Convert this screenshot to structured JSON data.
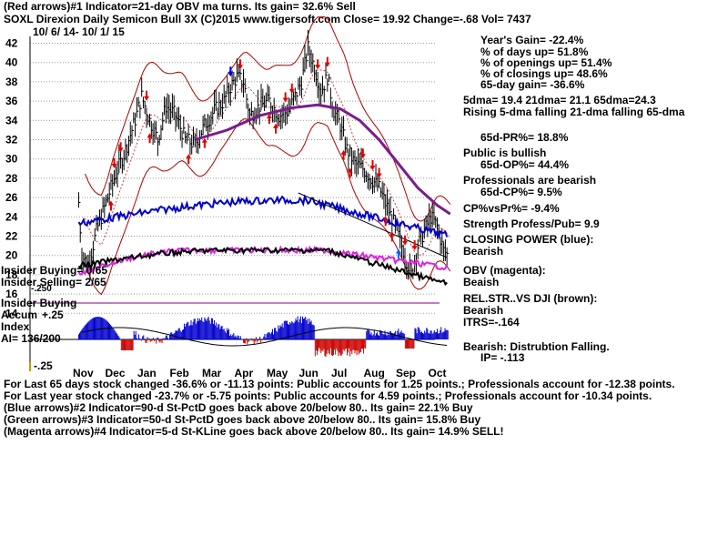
{
  "header": {
    "line1": "(Red arrows)#1 Indicator=21-day OBV ma turns. Its gain= 32.6% Sell",
    "line2": "SOXL   Direxion Daily Semicon Bull 3X  (C)2015 www.tigersoft.com      Close=  19.92  Change=-.68 Vol=  7437",
    "date_range": "10/ 6/ 14-  10/ 1/ 15"
  },
  "stats": [
    "Year's Gain= -22.4%",
    "% of days up= 51.8%",
    "% of openings up= 51.4%",
    "% of closings up= 48.6%",
    "65-day gain= -36.6%",
    "5dma= 19.4 21dma= 21.1 65dma=24.3",
    "Rising 5-dma falling 21-dma falling 65-dma",
    "65d-PR%= 18.8%",
    "Public is bullish",
    "65d-OP%= 44.4%",
    "Professionals are bearish",
    "65d-CP%= 9.5%",
    "CP%vsPr%= -9.4%",
    "Strength Profess/Pub= 9.9",
    "CLOSING POWER (blue):",
    "Bearish",
    "OBV (magenta):",
    "Beaish",
    "REL.STR..VS DJI (brown):",
    "Bearish",
    "ITRS=-.164",
    "Bearish: Distrubtion Falling.",
    "IP= -.113"
  ],
  "left_labels": {
    "insider_buying_65": "Insider Buying= 0/65",
    "insider_selling_65": "Insider Selling= 2/65",
    "insider_buying": "Insider Buying",
    "accum_label": "Accum",
    "accum_top": "+.25",
    "index_label": "Index",
    "ai": "AI= 136/200",
    "accum_bottom": "-.25",
    "small_val": "-.250"
  },
  "footer": [
    "For Last 65 days stock changed -36.6% or -11.13 points:  Public accounts for  1.25 points.;  Professionals account for -12.38 points.",
    "For Last year stock changed -23.7% or -5.75 points:  Public accounts for  4.59 points.;  Professionals account for -10.34 points.",
    "(Blue arrows)#2 Indicator=90-d St-PctD goes back above 20/below 80.. Its gain= 22.1% Buy",
    "(Green arrows)#3 Indicator=50-d St-PctD goes back above 20/below 80.. Its gain= 15.8% Buy",
    "(Magenta arrows)#4 Indicator=5-d St-KLine goes back above 20/below 80.. Its gain= 14.9% SELL!"
  ],
  "chart_data": {
    "type": "line",
    "ticker": "SOXL",
    "y_ticks": [
      42,
      40,
      38,
      36,
      34,
      32,
      30,
      28,
      26,
      24,
      22,
      20,
      18,
      16,
      14
    ],
    "ylim": [
      14,
      43
    ],
    "x_ticks": [
      "Nov",
      "Dec",
      "Jan",
      "Feb",
      "Mar",
      "Apr",
      "May",
      "Jun",
      "Jul",
      "Aug",
      "Sep",
      "Oct"
    ],
    "grid": true,
    "close_series": [
      {
        "m": -0.1,
        "v": 25.5
      },
      {
        "m": 0.0,
        "v": 20.0
      },
      {
        "m": 0.2,
        "v": 19.0
      },
      {
        "m": 0.45,
        "v": 22.5
      },
      {
        "m": 0.7,
        "v": 25.0
      },
      {
        "m": 1.0,
        "v": 28.0
      },
      {
        "m": 1.3,
        "v": 30.5
      },
      {
        "m": 1.6,
        "v": 33.5
      },
      {
        "m": 1.85,
        "v": 36.5
      },
      {
        "m": 2.1,
        "v": 34.0
      },
      {
        "m": 2.35,
        "v": 32.0
      },
      {
        "m": 2.6,
        "v": 35.5
      },
      {
        "m": 2.9,
        "v": 34.5
      },
      {
        "m": 3.2,
        "v": 32.0
      },
      {
        "m": 3.5,
        "v": 31.5
      },
      {
        "m": 3.8,
        "v": 33.5
      },
      {
        "m": 4.1,
        "v": 35.0
      },
      {
        "m": 4.4,
        "v": 36.0
      },
      {
        "m": 4.6,
        "v": 37.5
      },
      {
        "m": 4.8,
        "v": 38.5
      },
      {
        "m": 5.0,
        "v": 38.0
      },
      {
        "m": 5.2,
        "v": 34.5
      },
      {
        "m": 5.5,
        "v": 35.5
      },
      {
        "m": 5.8,
        "v": 36.0
      },
      {
        "m": 6.1,
        "v": 34.5
      },
      {
        "m": 6.4,
        "v": 35.0
      },
      {
        "m": 6.6,
        "v": 36.5
      },
      {
        "m": 6.8,
        "v": 38.0
      },
      {
        "m": 7.0,
        "v": 41.5
      },
      {
        "m": 7.2,
        "v": 39.5
      },
      {
        "m": 7.4,
        "v": 37.0
      },
      {
        "m": 7.6,
        "v": 38.5
      },
      {
        "m": 7.8,
        "v": 35.0
      },
      {
        "m": 8.0,
        "v": 33.5
      },
      {
        "m": 8.2,
        "v": 31.0
      },
      {
        "m": 8.45,
        "v": 29.5
      },
      {
        "m": 8.7,
        "v": 29.0
      },
      {
        "m": 8.95,
        "v": 28.0
      },
      {
        "m": 9.2,
        "v": 27.0
      },
      {
        "m": 9.45,
        "v": 25.0
      },
      {
        "m": 9.7,
        "v": 23.0
      },
      {
        "m": 9.95,
        "v": 20.5
      },
      {
        "m": 10.2,
        "v": 18.0
      },
      {
        "m": 10.4,
        "v": 21.0
      },
      {
        "m": 10.6,
        "v": 22.5
      },
      {
        "m": 10.8,
        "v": 24.0
      },
      {
        "m": 11.0,
        "v": 23.0
      },
      {
        "m": 11.2,
        "v": 20.5
      },
      {
        "m": 11.35,
        "v": 19.92
      }
    ],
    "ma65": [
      {
        "m": 3.5,
        "v": 32.0
      },
      {
        "m": 4.5,
        "v": 33.0
      },
      {
        "m": 5.5,
        "v": 34.5
      },
      {
        "m": 6.5,
        "v": 35.3
      },
      {
        "m": 7.3,
        "v": 35.6
      },
      {
        "m": 8.0,
        "v": 35.2
      },
      {
        "m": 8.6,
        "v": 34.0
      },
      {
        "m": 9.2,
        "v": 32.0
      },
      {
        "m": 9.8,
        "v": 29.5
      },
      {
        "m": 10.4,
        "v": 27.0
      },
      {
        "m": 11.0,
        "v": 25.2
      },
      {
        "m": 11.4,
        "v": 24.3
      }
    ],
    "annotations": {
      "red_down_arrows": [
        1.0,
        1.2,
        2.0,
        4.9,
        6.3,
        6.5,
        7.3,
        7.6,
        8.7,
        9.0,
        9.2,
        10.0,
        10.3
      ],
      "red_up_arrows": [
        0.9,
        2.1,
        3.3,
        3.8,
        5.8,
        6.0,
        8.1,
        8.3,
        9.4,
        9.6
      ],
      "blue_down_arrows": [
        4.6
      ],
      "blue_up_arrows": [
        9.8
      ]
    }
  }
}
